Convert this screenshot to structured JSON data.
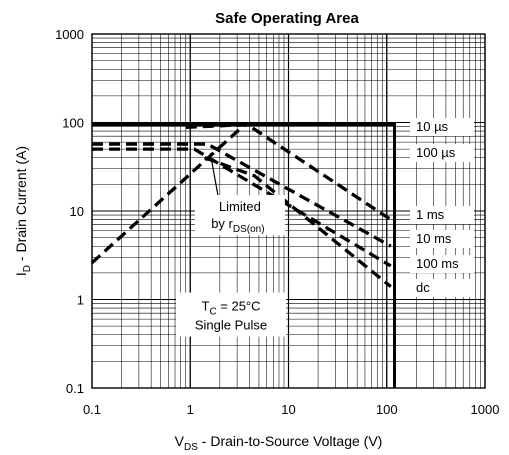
{
  "chart_data": {
    "type": "line",
    "title": "Safe Operating Area",
    "x_scale": "log",
    "y_scale": "log",
    "xlim": [
      0.1,
      1000
    ],
    "ylim": [
      0.1,
      1000
    ],
    "grid": true,
    "x_ticks": [
      "0.1",
      "1",
      "10",
      "100",
      "1000"
    ],
    "y_ticks": [
      "0.1",
      "1",
      "10",
      "100",
      "1000"
    ],
    "xlabel": {
      "main": "V",
      "sub": "DS",
      "rest": " -  Drain-to-Source Voltage (V)"
    },
    "ylabel": {
      "main": "I",
      "sub": "D",
      "rest": " - Drain Current (A)"
    },
    "series": [
      {
        "name": "Limited by rDS(on)",
        "style": "dashed",
        "x": [
          0.1,
          3.6
        ],
        "y": [
          2.6,
          95
        ]
      },
      {
        "name": "10 µs",
        "style": "solid",
        "x": [
          0.1,
          120,
          120
        ],
        "y": [
          95,
          95,
          0.1
        ]
      },
      {
        "name": "100 µs",
        "style": "dashed",
        "x": [
          0.9,
          3.8,
          110
        ],
        "y": [
          88,
          95,
          8
        ]
      },
      {
        "name": "1 ms",
        "style": "dashed",
        "x": [
          0.1,
          1.5,
          110
        ],
        "y": [
          57,
          57,
          4
        ]
      },
      {
        "name": "10 ms",
        "style": "dashed",
        "x": [
          0.1,
          1.1,
          110
        ],
        "y": [
          50,
          50,
          2.4
        ]
      },
      {
        "name": "100 ms",
        "style": "dashed",
        "x": [
          1.4,
          4.5,
          110
        ],
        "y": [
          40,
          25,
          1.4
        ]
      },
      {
        "name": "dc",
        "style": "dashed",
        "x": [],
        "y": []
      }
    ],
    "annotations": [
      {
        "lines": [
          {
            "text": "Limited"
          },
          {
            "main": "by r",
            "sub": "DS(on)"
          }
        ],
        "x": 3.2,
        "y": 10,
        "arrow_to": [
          1.6,
          45
        ]
      },
      {
        "lines": [
          {
            "main": "T",
            "sub": "C",
            "rest": " = 25°C"
          },
          {
            "text": "Single Pulse"
          }
        ],
        "x": 2.6,
        "y": 0.75
      }
    ],
    "legend_labels": [
      "10 µs",
      "100 µs",
      "1 ms",
      "10 ms",
      "100 ms",
      "dc"
    ]
  }
}
